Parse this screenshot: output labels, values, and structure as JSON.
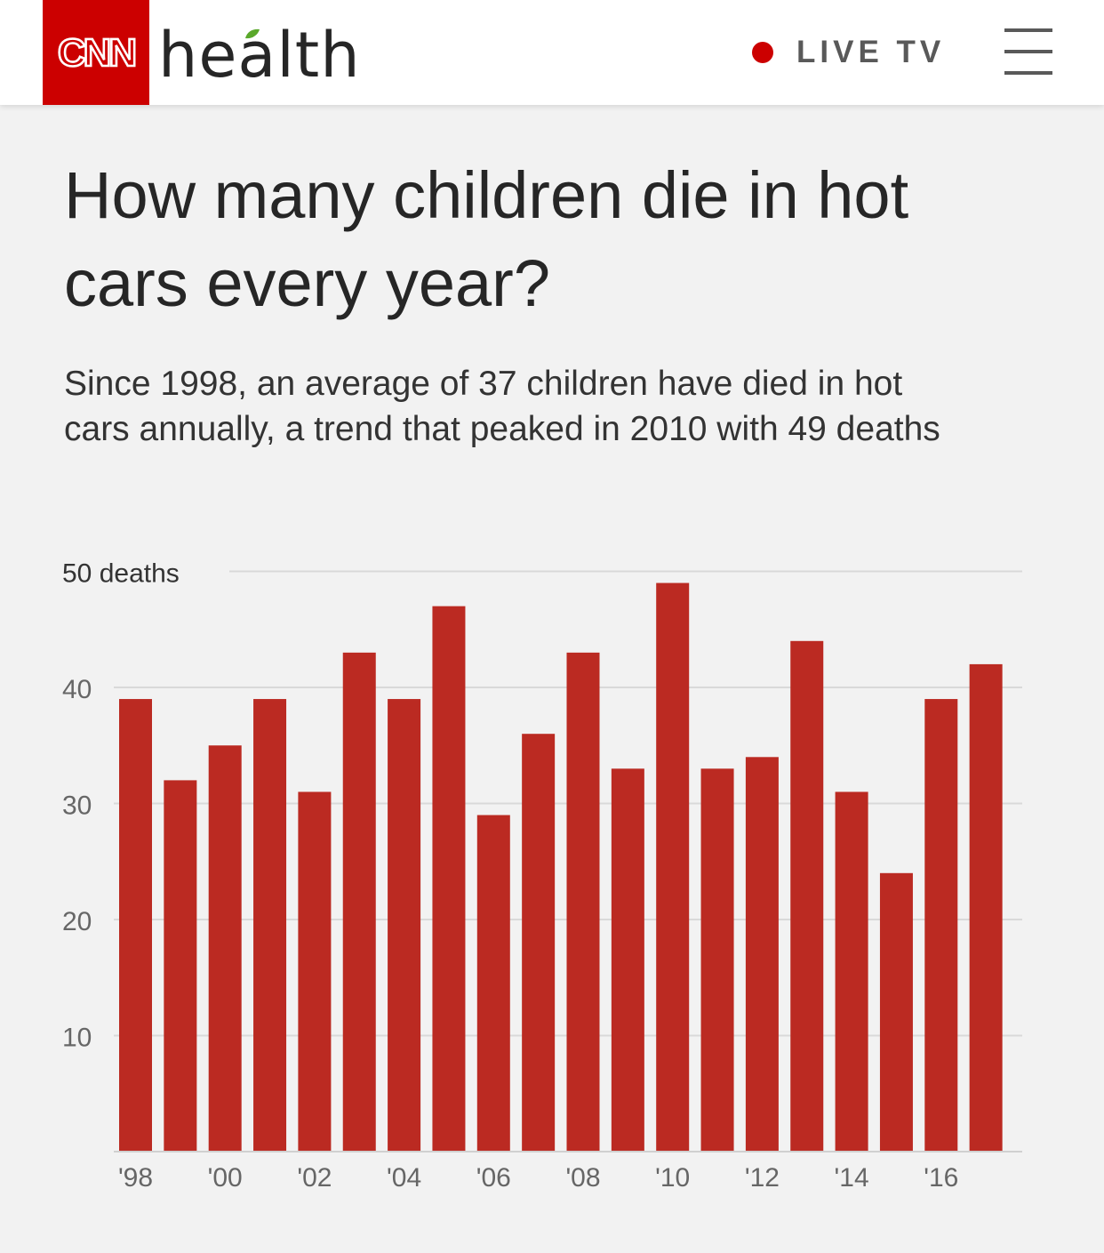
{
  "header": {
    "brand": "CNN",
    "section": "health",
    "live_label": "LIVE TV",
    "brand_color": "#cc0000",
    "live_dot_color": "#cc0000",
    "icons": [
      "cnn-logo-icon",
      "leaf-icon",
      "live-dot-icon",
      "menu-icon"
    ]
  },
  "article": {
    "title": "How many children die in hot cars every year?",
    "subtitle": "Since 1998, an average of 37 children have died in hot cars annually, a trend that peaked in 2010 with 49 deaths"
  },
  "chart_data": {
    "type": "bar",
    "title": "",
    "xlabel": "",
    "ylabel": "",
    "x": [
      1998,
      1999,
      2000,
      2001,
      2002,
      2003,
      2004,
      2005,
      2006,
      2007,
      2008,
      2009,
      2010,
      2011,
      2012,
      2013,
      2014,
      2015,
      2016,
      2017
    ],
    "values": [
      39,
      32,
      35,
      39,
      31,
      43,
      39,
      47,
      29,
      36,
      43,
      33,
      49,
      33,
      34,
      44,
      31,
      24,
      39,
      42
    ],
    "x_tick_labels": [
      "'98",
      "'00",
      "'02",
      "'04",
      "'06",
      "'08",
      "'10",
      "'12",
      "'14",
      "'16"
    ],
    "y_tick_labels": [
      "50 deaths",
      "40",
      "30",
      "20",
      "10"
    ],
    "y_ticks": [
      50,
      40,
      30,
      20,
      10
    ],
    "ylim": [
      0,
      50
    ],
    "grid": true,
    "bar_color": "#bb2a22"
  }
}
